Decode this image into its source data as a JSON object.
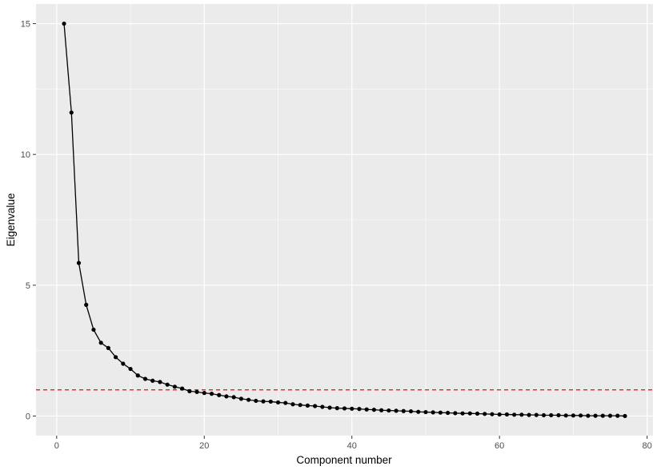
{
  "chart_data": {
    "type": "line",
    "xlabel": "Component number",
    "ylabel": "Eigenvalue",
    "xlim": [
      -2.8,
      80.8
    ],
    "ylim": [
      -0.75,
      15.75
    ],
    "x_ticks": [
      0,
      20,
      40,
      60,
      80
    ],
    "y_ticks": [
      0,
      5,
      10,
      15
    ],
    "grid": true,
    "background": "#ebebeb",
    "grid_color": "#ffffff",
    "line_color": "#000000",
    "reference_line": {
      "y": 1,
      "color": "#ff0000",
      "style": "dashed"
    },
    "series": [
      {
        "x": [
          1,
          2,
          3,
          4,
          5,
          6,
          7,
          8,
          9,
          10,
          11,
          12,
          13,
          14,
          15,
          16,
          17,
          18,
          19,
          20,
          21,
          22,
          23,
          24,
          25,
          26,
          27,
          28,
          29,
          30,
          31,
          32,
          33,
          34,
          35,
          36,
          37,
          38,
          39,
          40,
          41,
          42,
          43,
          44,
          45,
          46,
          47,
          48,
          49,
          50,
          51,
          52,
          53,
          54,
          55,
          56,
          57,
          58,
          59,
          60,
          61,
          62,
          63,
          64,
          65,
          66,
          67,
          68,
          69,
          70,
          71,
          72,
          73,
          74,
          75,
          76,
          77
        ],
        "values": [
          15.0,
          11.6,
          5.85,
          4.25,
          3.3,
          2.8,
          2.6,
          2.25,
          2.0,
          1.8,
          1.55,
          1.42,
          1.35,
          1.3,
          1.2,
          1.12,
          1.05,
          0.95,
          0.92,
          0.88,
          0.85,
          0.8,
          0.75,
          0.72,
          0.66,
          0.62,
          0.58,
          0.56,
          0.55,
          0.52,
          0.5,
          0.45,
          0.42,
          0.4,
          0.38,
          0.35,
          0.32,
          0.3,
          0.29,
          0.28,
          0.27,
          0.25,
          0.24,
          0.22,
          0.21,
          0.2,
          0.19,
          0.18,
          0.16,
          0.15,
          0.14,
          0.13,
          0.12,
          0.11,
          0.1,
          0.1,
          0.09,
          0.08,
          0.07,
          0.06,
          0.06,
          0.05,
          0.05,
          0.04,
          0.04,
          0.03,
          0.03,
          0.03,
          0.02,
          0.02,
          0.02,
          0.01,
          0.01,
          0.01,
          0.01,
          0.01,
          0.0
        ]
      }
    ]
  }
}
